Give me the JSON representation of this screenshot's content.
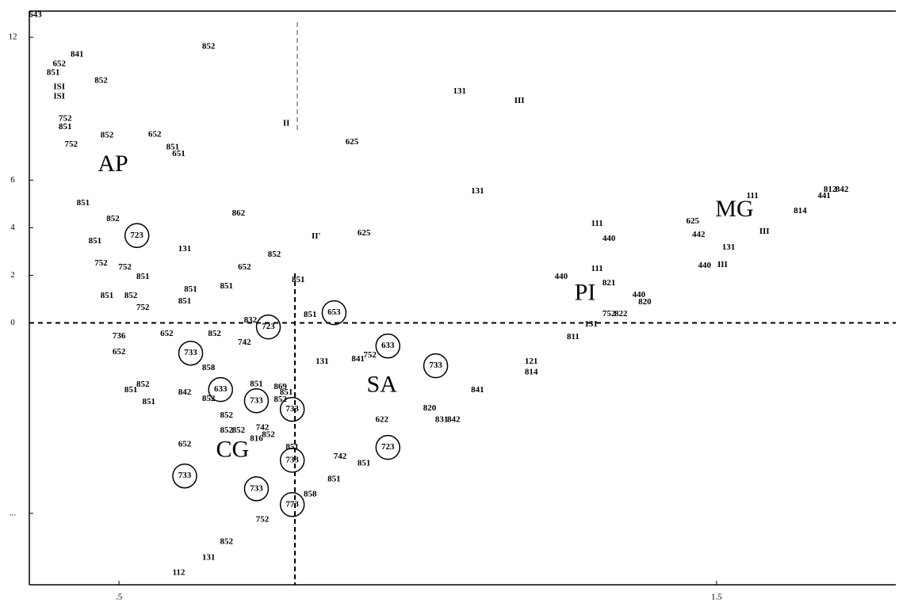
{
  "chart_data": {
    "type": "label-scatter",
    "xlim": [
      0.35,
      1.8
    ],
    "ylim": [
      -11,
      13.1
    ],
    "xticks": [
      {
        "value": 0.5,
        "label": ".5"
      },
      1.5
    ],
    "yticks": [
      12,
      6,
      4,
      2,
      0,
      {
        "value": -8,
        "label": "..."
      }
    ],
    "color": "#000000",
    "points": [
      [
        "643",
        0.36,
        12.93
      ],
      [
        "841",
        0.43,
        11.27
      ],
      [
        "652",
        0.4,
        10.87
      ],
      [
        "851",
        0.39,
        10.5
      ],
      [
        "852",
        0.47,
        10.17
      ],
      [
        "ISI",
        0.4,
        9.9
      ],
      [
        "ISI",
        0.4,
        9.5
      ],
      [
        "852",
        0.65,
        11.6
      ],
      [
        "752",
        0.41,
        8.57
      ],
      [
        "851",
        0.41,
        8.23
      ],
      [
        "752",
        0.42,
        7.5
      ],
      [
        "852",
        0.48,
        7.87
      ],
      [
        "652",
        0.56,
        7.9
      ],
      [
        "851",
        0.59,
        7.37
      ],
      [
        "651",
        0.6,
        7.1
      ],
      [
        "II",
        0.78,
        8.37
      ],
      [
        "131",
        1.07,
        9.73
      ],
      [
        "III",
        1.17,
        9.33
      ],
      [
        "625",
        0.89,
        7.6
      ],
      [
        "131",
        1.1,
        5.53
      ],
      [
        "851",
        0.44,
        5.03
      ],
      [
        "852",
        0.49,
        4.37
      ],
      [
        "862",
        0.7,
        4.6
      ],
      [
        "851",
        0.46,
        3.43
      ],
      [
        "625",
        0.91,
        3.77
      ],
      [
        "II'",
        0.83,
        3.63
      ],
      [
        "131",
        0.61,
        3.1
      ],
      [
        "852",
        0.76,
        2.87
      ],
      [
        "752",
        0.47,
        2.5
      ],
      [
        "752",
        0.51,
        2.33
      ],
      [
        "652",
        0.71,
        2.33
      ],
      [
        "851",
        0.54,
        1.93
      ],
      [
        "851",
        0.8,
        1.8
      ],
      [
        "851",
        0.62,
        1.4
      ],
      [
        "851",
        0.68,
        1.53
      ],
      [
        "851",
        0.61,
        0.9
      ],
      [
        "851",
        0.48,
        1.13
      ],
      [
        "852",
        0.52,
        1.13
      ],
      [
        "752",
        0.54,
        0.63
      ],
      [
        "851",
        0.82,
        0.33
      ],
      [
        "832",
        0.72,
        0.1
      ],
      [
        "652",
        0.58,
        -0.47
      ],
      [
        "852",
        0.66,
        -0.47
      ],
      [
        "736",
        0.5,
        -0.57
      ],
      [
        "742",
        0.71,
        -0.83
      ],
      [
        "652",
        0.5,
        -1.23
      ],
      [
        "858",
        0.65,
        -1.9
      ],
      [
        "131",
        0.84,
        -1.63
      ],
      [
        "841",
        0.9,
        -1.53
      ],
      [
        "752",
        0.92,
        -1.37
      ],
      [
        "852",
        0.54,
        -2.6
      ],
      [
        "851",
        0.52,
        -2.83
      ],
      [
        "851",
        0.55,
        -3.33
      ],
      [
        "842",
        0.61,
        -2.93
      ],
      [
        "852",
        0.65,
        -3.2
      ],
      [
        "851",
        0.73,
        -2.57
      ],
      [
        "869",
        0.77,
        -2.7
      ],
      [
        "851",
        0.78,
        -2.93
      ],
      [
        "852",
        0.77,
        -3.23
      ],
      [
        "852",
        0.68,
        -3.9
      ],
      [
        "852",
        0.68,
        -4.53
      ],
      [
        "742",
        0.74,
        -4.4
      ],
      [
        "852",
        0.7,
        -4.53
      ],
      [
        "852",
        0.75,
        -4.7
      ],
      [
        "816",
        0.73,
        -4.87
      ],
      [
        "652",
        0.61,
        -5.1
      ],
      [
        "851",
        0.79,
        -5.23
      ],
      [
        "742",
        0.87,
        -5.63
      ],
      [
        "851",
        0.91,
        -5.9
      ],
      [
        "851",
        0.86,
        -6.57
      ],
      [
        "858",
        0.82,
        -7.2
      ],
      [
        "752",
        0.74,
        -8.27
      ],
      [
        "852",
        0.68,
        -9.2
      ],
      [
        "131",
        0.65,
        -9.87
      ],
      [
        "112",
        0.6,
        -10.5
      ],
      [
        "622",
        0.94,
        -4.07
      ],
      [
        "820",
        1.02,
        -3.6
      ],
      [
        "831",
        1.04,
        -4.07
      ],
      [
        "842",
        1.06,
        -4.07
      ],
      [
        "841",
        1.1,
        -2.83
      ],
      [
        "121",
        1.19,
        -1.63
      ],
      [
        "814",
        1.19,
        -2.07
      ],
      [
        "111",
        1.3,
        4.17
      ],
      [
        "440",
        1.32,
        3.53
      ],
      [
        "111",
        1.3,
        2.27
      ],
      [
        "440",
        1.24,
        1.93
      ],
      [
        "821",
        1.32,
        1.67
      ],
      [
        "440",
        1.37,
        1.17
      ],
      [
        "820",
        1.38,
        0.87
      ],
      [
        "752",
        1.32,
        0.37
      ],
      [
        "822",
        1.34,
        0.37
      ],
      [
        "131",
        1.29,
        -0.07
      ],
      [
        "811",
        1.26,
        -0.6
      ],
      [
        "625",
        1.46,
        4.27
      ],
      [
        "442",
        1.47,
        3.7
      ],
      [
        "131",
        1.52,
        3.17
      ],
      [
        "440",
        1.48,
        2.4
      ],
      [
        "III",
        1.51,
        2.43
      ],
      [
        "III",
        1.58,
        3.83
      ],
      [
        "111",
        1.56,
        5.33
      ],
      [
        "814",
        1.64,
        4.7
      ],
      [
        "441",
        1.68,
        5.33
      ],
      [
        "842",
        1.71,
        5.6
      ],
      [
        "812",
        1.69,
        5.6
      ]
    ],
    "circled": [
      [
        "723",
        0.53,
        3.67
      ],
      [
        "723",
        0.75,
        -0.17
      ],
      [
        "653",
        0.86,
        0.43
      ],
      [
        "733",
        0.62,
        -1.27
      ],
      [
        "633",
        0.95,
        -0.97
      ],
      [
        "733",
        1.03,
        -1.8
      ],
      [
        "633",
        0.67,
        -2.8
      ],
      [
        "733",
        0.73,
        -3.27
      ],
      [
        "733",
        0.79,
        -3.63
      ],
      [
        "733",
        0.79,
        -5.77
      ],
      [
        "723",
        0.95,
        -5.23
      ],
      [
        "733",
        0.61,
        -6.43
      ],
      [
        "733",
        0.73,
        -6.97
      ],
      [
        "773",
        0.79,
        -7.63
      ]
    ],
    "annotations": [
      [
        "AP",
        0.49,
        6.6
      ],
      [
        "MG",
        1.53,
        4.7
      ],
      [
        "PI",
        1.28,
        1.2
      ],
      [
        "SA",
        0.94,
        -2.67
      ],
      [
        "CG",
        0.69,
        -5.4
      ]
    ]
  }
}
